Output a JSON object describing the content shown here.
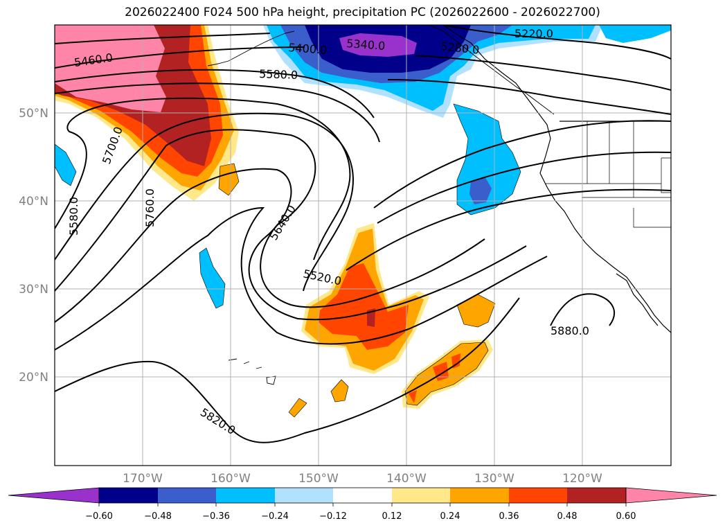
{
  "title": "2026022400 F024 500 hPa height, precipitation PC (2026022600 - 2026022700)",
  "map": {
    "lat_labels": [
      "50°N",
      "40°N",
      "30°N",
      "20°N"
    ],
    "lon_labels": [
      "170°W",
      "160°W",
      "150°W",
      "140°W",
      "130°W",
      "120°W"
    ],
    "height_contour_labels": [
      "5460.0",
      "5700.0",
      "5580.0",
      "5760.0",
      "5580.0",
      "5400.0",
      "5340.0",
      "5280.0",
      "5220.0",
      "5640.0",
      "5520.0",
      "5880.0",
      "5820.0"
    ]
  },
  "colorbar": {
    "ticks": [
      "−0.60",
      "−0.48",
      "−0.36",
      "−0.24",
      "−0.12",
      "0.12",
      "0.24",
      "0.36",
      "0.48",
      "0.60"
    ],
    "colors": [
      "#9932cc",
      "#00008b",
      "#3a5fcd",
      "#00bfff",
      "#b0e2ff",
      "#ffffff",
      "#ffe88a",
      "#ffa500",
      "#ff4500",
      "#b22222",
      "#ff85a8"
    ]
  }
}
